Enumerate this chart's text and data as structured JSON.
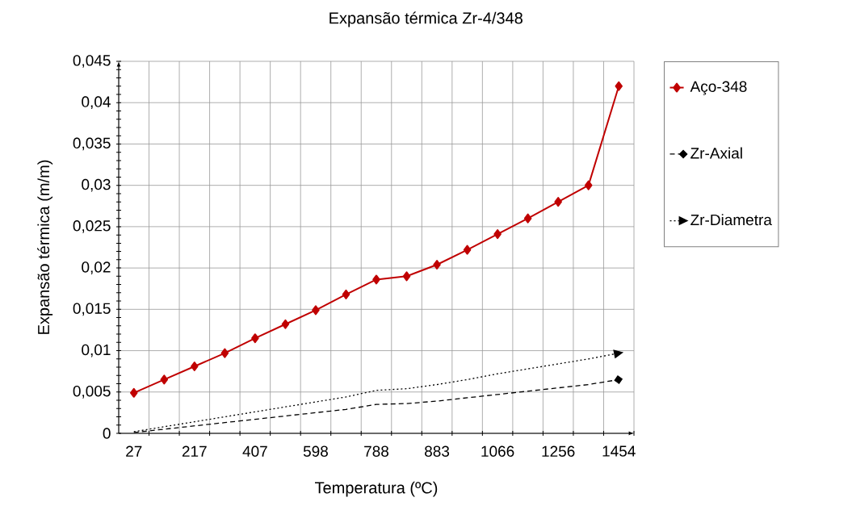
{
  "chart_data": {
    "type": "line",
    "title": "Expansão térmica  Zr-4/348",
    "xlabel": "Temperatura (ºC)",
    "ylabel": "Expansão térmica   (m/m)",
    "categories": [
      "27",
      null,
      "217",
      null,
      "407",
      null,
      "598",
      null,
      "788",
      null,
      "883",
      null,
      "1066",
      null,
      "1256",
      null,
      "1454"
    ],
    "series": [
      {
        "name": "Aço-348",
        "color": "#c00000",
        "marker": "diamond",
        "line_style": "solid",
        "values": [
          0.0049,
          0.0065,
          0.0081,
          0.0097,
          0.0115,
          0.0132,
          0.0149,
          0.0168,
          0.0186,
          0.019,
          0.0204,
          0.0222,
          0.0241,
          0.026,
          0.028,
          0.03,
          0.042
        ]
      },
      {
        "name": "Zr-Axial",
        "color": "#000000",
        "marker": "none",
        "line_style": "dashed",
        "values": [
          0.0001,
          0.0005,
          0.0009,
          0.0013,
          0.0017,
          0.0021,
          0.0025,
          0.0029,
          0.0035,
          0.0036,
          0.0039,
          0.0043,
          0.0047,
          0.0051,
          0.0055,
          0.0059,
          0.0065
        ]
      },
      {
        "name": "Zr-Diametra",
        "color": "#000000",
        "marker": "none",
        "line_style": "dotted",
        "values": [
          0.0002,
          0.0008,
          0.0014,
          0.002,
          0.0026,
          0.0032,
          0.0038,
          0.0044,
          0.0052,
          0.0054,
          0.0059,
          0.0065,
          0.0072,
          0.0078,
          0.0084,
          0.009,
          0.0097
        ]
      }
    ],
    "ylim": [
      0,
      0.045
    ],
    "yticks": [
      0,
      {
        "value": 0.005,
        "label": "0,005"
      },
      {
        "value": 0.01,
        "label": "0,01"
      },
      {
        "value": 0.015,
        "label": "0,015"
      },
      {
        "value": 0.02,
        "label": "0,02"
      },
      {
        "value": 0.025,
        "label": "0,025"
      },
      {
        "value": 0.03,
        "label": "0,03"
      },
      {
        "value": 0.035,
        "label": "0,035"
      },
      {
        "value": 0.04,
        "label": "0,04"
      },
      {
        "value": 0.045,
        "label": "0,045"
      }
    ],
    "grid": true,
    "legend": "right"
  }
}
